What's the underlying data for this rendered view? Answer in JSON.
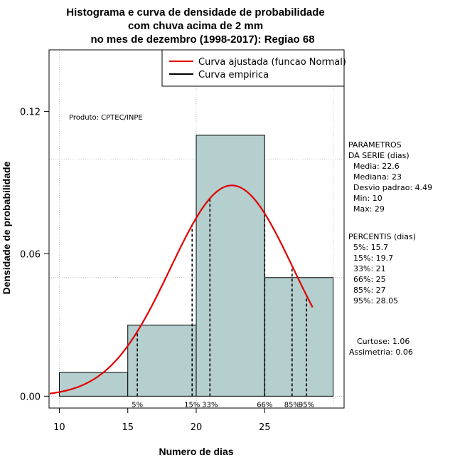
{
  "chart_data": {
    "type": "bar",
    "title": [
      "Histograma e curva de densidade de probabilidade",
      "com chuva acima de 2 mm",
      "no mes de dezembro (1998-2017): Regiao 68"
    ],
    "xlabel": "Numero de dias",
    "ylabel": "Densidade de probabilidade",
    "xlim": [
      9.25,
      30.8
    ],
    "ylim": [
      -0.005,
      0.146
    ],
    "x_ticks": [
      10,
      15,
      20,
      25
    ],
    "x_tick_labels": [
      "10",
      "15",
      "20",
      "25"
    ],
    "y_ticks": [
      0.0,
      0.06,
      0.12
    ],
    "y_tick_labels": [
      "0.00",
      "0.06",
      "0.12"
    ],
    "grid": true,
    "grid_x": [
      10,
      20,
      30
    ],
    "grid_y": [
      0.0,
      0.05,
      0.1
    ],
    "bins": [
      {
        "from": 10,
        "to": 15,
        "density": 0.01
      },
      {
        "from": 15,
        "to": 20,
        "density": 0.03
      },
      {
        "from": 20,
        "to": 25,
        "density": 0.11
      },
      {
        "from": 25,
        "to": 30,
        "density": 0.05
      }
    ],
    "bar_color": "#b5cece",
    "curve": {
      "name": "Curva ajustada (funcao Normal)",
      "color": "#e00000",
      "distribution": "normal",
      "mean": 22.6,
      "sd": 4.49,
      "x_from": 9.3,
      "x_to": 28.5
    },
    "legend": {
      "position": "top-right",
      "entries": [
        {
          "label": "Curva ajustada (funcao Normal)",
          "color": "#e00000"
        },
        {
          "label": "Curva empirica",
          "color": "#000000"
        }
      ]
    },
    "percentiles": [
      {
        "label": "5%",
        "x": 15.7
      },
      {
        "label": "15%",
        "x": 19.7
      },
      {
        "label": "33%",
        "x": 21
      },
      {
        "label": "66%",
        "x": 25
      },
      {
        "label": "85%",
        "x": 27
      },
      {
        "label": "95%",
        "x": 28.05
      }
    ],
    "annotations": {
      "credit": "Produto: CPTEC/INPE"
    },
    "side_panel": {
      "params_lines": [
        "PARAMETROS",
        "DA SERIE (dias)",
        "  Media: 22.6",
        "  Mediana: 23",
        "  Desvio padrao: 4.49",
        "  Min: 10",
        "  Max: 29"
      ],
      "percentis_lines": [
        "PERCENTIS (dias)",
        "  5%: 15.7",
        "  15%: 19.7",
        "  33%: 21",
        "  66%: 25",
        "  85%: 27",
        "  95%: 28.05"
      ],
      "stats_lines": [
        "Curtose: 1.06",
        "Assimetria: 0.06"
      ]
    }
  }
}
